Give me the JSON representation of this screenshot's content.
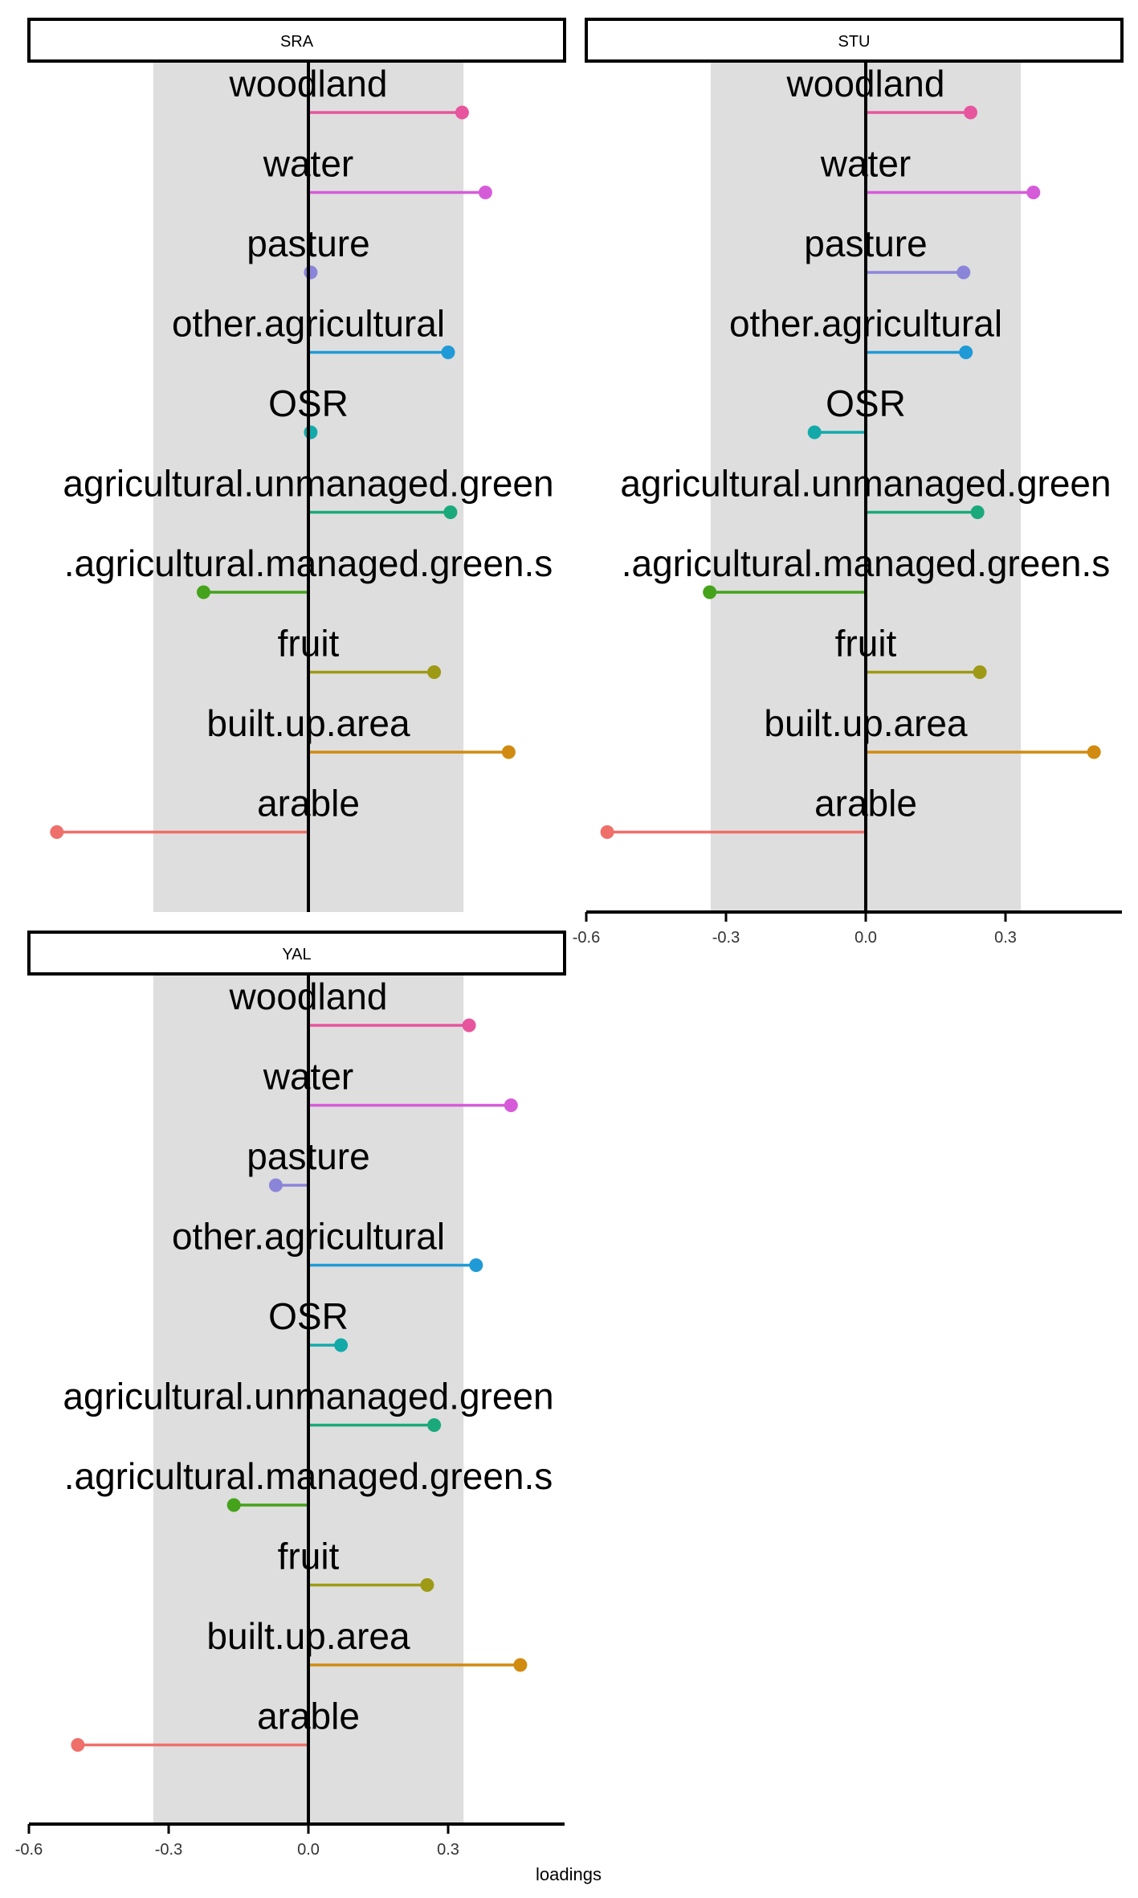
{
  "chart_data": {
    "type": "lollipop",
    "xlabel": "loadings",
    "ylabel": "",
    "xlim": [
      -0.6,
      0.55
    ],
    "xticks": [
      -0.6,
      -0.3,
      0.0,
      0.3
    ],
    "xtick_labels": [
      "-0.6",
      "-0.3",
      "0.0",
      "0.3"
    ],
    "shaded_band": [
      -0.333,
      0.333
    ],
    "categories": [
      "woodland",
      "water",
      "pasture",
      "other.agricultural",
      "OSR",
      "non.agricultural.unmanaged.green.space",
      "non.agricultural.managed.green.space",
      "fruit",
      "built.up.area",
      "arable"
    ],
    "category_display": [
      "woodland",
      "water",
      "pasture",
      "other.agricultural",
      "OSR",
      "agricultural.unmanaged.green",
      ".agricultural.managed.green.s",
      "fruit",
      "built.up.area",
      "arable"
    ],
    "colors": [
      "#e7559e",
      "#d65bd9",
      "#8b85d9",
      "#1f9ad6",
      "#14a9a9",
      "#1aa97a",
      "#45a21b",
      "#9e9a15",
      "#d18b10",
      "#ef6f6a"
    ],
    "panels": [
      {
        "name": "SRA",
        "values": [
          0.33,
          0.38,
          0.005,
          0.3,
          0.005,
          0.305,
          -0.225,
          0.27,
          0.43,
          -0.54
        ]
      },
      {
        "name": "STU",
        "values": [
          0.225,
          0.36,
          0.21,
          0.215,
          -0.11,
          0.24,
          -0.335,
          0.245,
          0.49,
          -0.555
        ]
      },
      {
        "name": "YAL",
        "values": [
          0.345,
          0.435,
          -0.07,
          0.36,
          0.07,
          0.27,
          -0.16,
          0.255,
          0.455,
          -0.495
        ]
      }
    ]
  }
}
